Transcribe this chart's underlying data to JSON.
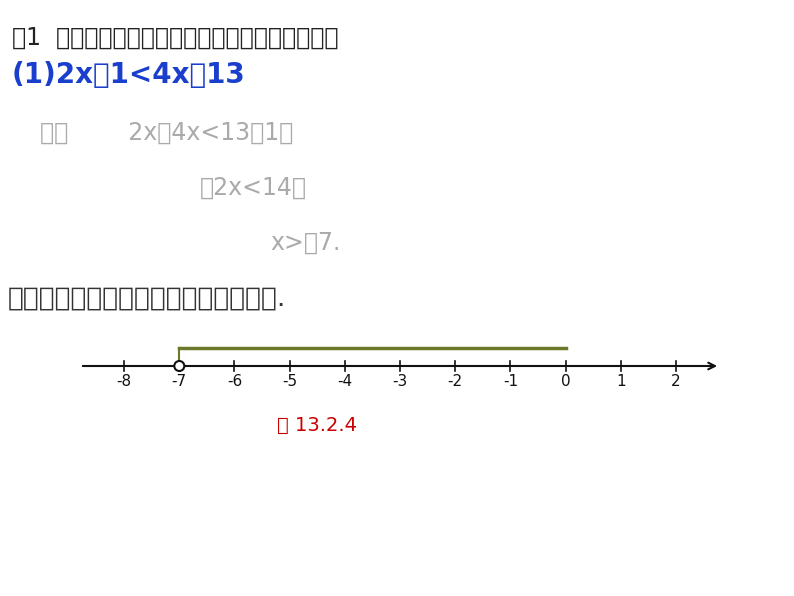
{
  "bg_color": "#ffffff",
  "title_line1": "例1  解下列不等式，并将解集在数轴上表示出来：",
  "title_line2": "(1)2x－1<4x＋13",
  "title_line1_color": "#222222",
  "title_line2_color": "#1a3fcc",
  "sol_line1": "解：        2x－4x<13＋1，",
  "sol_line2": "－2x<14，",
  "sol_line3": "x>－7.",
  "solution_color": "#aaaaaa",
  "conclusion_text": "这个不等式的解集在数轴上的表示如下.",
  "conclusion_color": "#333333",
  "number_line_ticks": [
    -8,
    -7,
    -6,
    -5,
    -4,
    -3,
    -2,
    -1,
    0,
    1,
    2
  ],
  "open_circle_at": -7,
  "ray_color": "#6b7a2a",
  "axis_color": "#111111",
  "fig_label": "图 13.2.4",
  "fig_label_color": "#cc0000"
}
